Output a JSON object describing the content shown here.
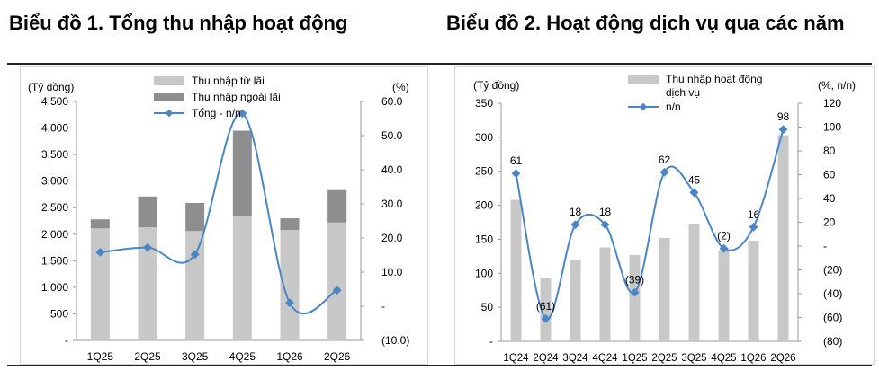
{
  "panel1": {
    "title": "Biểu đồ 1. Tổng thu nhập hoạt động"
  },
  "panel2": {
    "title": "Biểu đồ 2. Hoạt động dịch vụ qua các năm"
  },
  "chart_data": [
    {
      "type": "bar",
      "stacked": true,
      "title": "Biểu đồ 1. Tổng thu nhập hoạt động",
      "y_unit_left": "(Tỷ đồng)",
      "y_unit_right": "(%)",
      "categories": [
        "1Q25",
        "2Q25",
        "3Q25",
        "4Q25",
        "1Q26",
        "2Q26"
      ],
      "series": [
        {
          "name": "Thu nhập từ lãi",
          "type": "bar",
          "axis": "left",
          "color": "#c8c8c8",
          "values": [
            2110,
            2130,
            2060,
            2340,
            2080,
            2220
          ]
        },
        {
          "name": "Thu nhập ngoài lãi",
          "type": "bar",
          "axis": "left",
          "color": "#8e8e8e",
          "values": [
            170,
            580,
            530,
            1610,
            220,
            610
          ]
        },
        {
          "name": "Tổng - n/n",
          "type": "line",
          "axis": "right",
          "color": "#4a86c5",
          "values": [
            15.8,
            17.2,
            15.2,
            56.5,
            1.0,
            4.7
          ]
        }
      ],
      "ylim_left": [
        0,
        4500
      ],
      "ylim_right": [
        -10,
        60
      ],
      "yticks_left": [
        "-",
        "500",
        "1,000",
        "1,500",
        "2,000",
        "2,500",
        "3,000",
        "3,500",
        "4,000",
        "4,500"
      ],
      "yticks_right": [
        "(10.0)",
        "-",
        "10.0",
        "20.0",
        "30.0",
        "40.0",
        "50.0",
        "60.0"
      ],
      "grid": false,
      "legend": "top-center"
    },
    {
      "type": "bar",
      "title": "Biểu đồ 2. Hoạt động dịch vụ qua các năm",
      "y_unit_left": "(Tỷ đồng)",
      "y_unit_right": "(%, n/n)",
      "categories": [
        "1Q24",
        "2Q24",
        "3Q24",
        "4Q24",
        "1Q25",
        "2Q25",
        "3Q25",
        "4Q25",
        "1Q26",
        "2Q26"
      ],
      "series": [
        {
          "name": "Thu nhập hoạt động dịch vụ",
          "type": "bar",
          "axis": "left",
          "color": "#c8c8c8",
          "values": [
            208,
            93,
            120,
            138,
            127,
            152,
            173,
            134,
            148,
            303
          ]
        },
        {
          "name": "n/n",
          "type": "line",
          "axis": "right",
          "color": "#4a86c5",
          "values": [
            61,
            -61,
            18,
            18,
            -39,
            62,
            45,
            -2,
            16,
            98
          ],
          "labels": [
            "61",
            "(61)",
            "18",
            "18",
            "(39)",
            "62",
            "45",
            "(2)",
            "16",
            "98"
          ]
        }
      ],
      "ylim_left": [
        0,
        350
      ],
      "ylim_right": [
        -80,
        120
      ],
      "yticks_left": [
        "-",
        "50",
        "100",
        "150",
        "200",
        "250",
        "300",
        "350"
      ],
      "yticks_right": [
        "(80)",
        "(60)",
        "(40)",
        "(20)",
        "-",
        "20",
        "40",
        "60",
        "80",
        "100",
        "120"
      ],
      "grid": false,
      "legend": "top-center"
    }
  ]
}
